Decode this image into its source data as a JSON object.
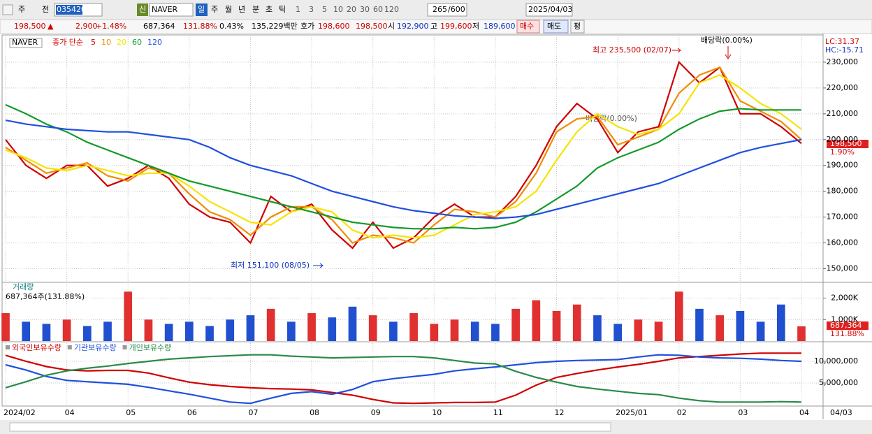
{
  "toolbar": {
    "kind": "주",
    "prev": "전",
    "code": "035420",
    "credit": "신",
    "name": "NAVER",
    "periods": [
      "일",
      "주",
      "월",
      "년",
      "분",
      "초",
      "틱"
    ],
    "intervals": [
      "1",
      "3",
      "5",
      "10",
      "20",
      "30",
      "60",
      "120"
    ],
    "count": "265",
    "count_max": "/600",
    "date": "2025/04/03"
  },
  "info": {
    "price": "198,500",
    "arrow": "▲",
    "change": "2,900",
    "change_rate": "+1.48%",
    "volume": "687,364",
    "volume_rate": "131.88%",
    "turnover": "0.43%",
    "amount": "135,229백만",
    "quote_label": "호가",
    "ask": "198,600",
    "bid": "198,500",
    "open_label": "시",
    "open": "192,900",
    "high_label": "고",
    "high": "199,600",
    "low_label": "저",
    "low": "189,600",
    "buy": "매수",
    "sell": "매도",
    "avg": "평"
  },
  "chart_data": [
    {
      "type": "line",
      "title": "NAVER",
      "ma_label": "종가 단순",
      "lc": "LC:31.37",
      "hc": "HC:-15.71",
      "last_label": "198,500",
      "last_rate": "1.90%",
      "annotations": [
        "최고 235,500 (02/07)",
        "배당락(0.00%)",
        "배당락(0.00%)",
        "최저 151,100 (08/05)"
      ],
      "ylim": [
        145000,
        240000
      ],
      "yticks": [
        {
          "value": 150000,
          "label": "150,000"
        },
        {
          "value": 160000,
          "label": "160,000"
        },
        {
          "value": 170000,
          "label": "170,000"
        },
        {
          "value": 180000,
          "label": "180,000"
        },
        {
          "value": 190000,
          "label": "190,000"
        },
        {
          "value": 200000,
          "label": "200,000"
        },
        {
          "value": 210000,
          "label": "210,000"
        },
        {
          "value": 220000,
          "label": "220,000"
        },
        {
          "value": 230000,
          "label": "230,000"
        }
      ],
      "grid": true,
      "series": [
        {
          "name": "5",
          "color": "#d00000",
          "values": [
            200000,
            190000,
            185000,
            190000,
            190000,
            182000,
            185000,
            190000,
            185000,
            175000,
            170000,
            168000,
            160000,
            178000,
            172000,
            175000,
            165000,
            158000,
            168000,
            158000,
            162000,
            170000,
            175000,
            170000,
            170000,
            178000,
            190000,
            205000,
            214000,
            208000,
            195000,
            203000,
            205000,
            230000,
            222000,
            228000,
            210000,
            210000,
            205000,
            198500
          ]
        },
        {
          "name": "10",
          "color": "#f08c00",
          "values": [
            197000,
            192000,
            187000,
            189000,
            191000,
            186000,
            184000,
            189000,
            187000,
            179000,
            172000,
            169000,
            163000,
            170000,
            174000,
            174000,
            169000,
            160000,
            163000,
            162000,
            160000,
            167000,
            173000,
            172000,
            170000,
            176000,
            187000,
            203000,
            208000,
            209000,
            198000,
            201000,
            204000,
            218000,
            225000,
            228000,
            215000,
            211000,
            207000,
            200000
          ]
        },
        {
          "name": "20",
          "color": "#f5e400",
          "values": [
            196000,
            193000,
            189000,
            188000,
            190000,
            188000,
            186000,
            187000,
            187000,
            182000,
            176000,
            172000,
            168000,
            167000,
            172000,
            174000,
            172000,
            165000,
            162000,
            163000,
            162000,
            163000,
            167000,
            171000,
            172000,
            174000,
            180000,
            192000,
            203000,
            210000,
            205000,
            202000,
            204000,
            210000,
            222000,
            225000,
            220000,
            214000,
            210000,
            204000
          ]
        },
        {
          "name": "60",
          "color": "#129a2a",
          "values": [
            213500,
            210000,
            206000,
            203000,
            199000,
            196000,
            193000,
            190000,
            187000,
            184000,
            182000,
            180000,
            178000,
            176000,
            174000,
            172000,
            170000,
            168000,
            167000,
            166000,
            165500,
            165500,
            166000,
            165500,
            166000,
            168000,
            172000,
            177000,
            182000,
            189000,
            193000,
            196000,
            199000,
            204000,
            208000,
            211000,
            212000,
            211500,
            211500,
            211500
          ]
        },
        {
          "name": "120",
          "color": "#2050e0",
          "values": [
            207500,
            206000,
            205000,
            204000,
            203500,
            203000,
            203000,
            202000,
            201000,
            200000,
            197000,
            193000,
            190000,
            188000,
            186000,
            183000,
            180000,
            178000,
            176000,
            174000,
            172500,
            171500,
            170500,
            170000,
            169500,
            170000,
            171000,
            173000,
            175000,
            177000,
            179000,
            181000,
            183000,
            186000,
            189000,
            192000,
            195000,
            197000,
            198500,
            200000
          ]
        }
      ]
    },
    {
      "type": "bar",
      "title": "거래량",
      "readout": "687,364주(131.88%)",
      "last_label": "687,364",
      "last_rate": "131.88%",
      "ylim": [
        0,
        2700000
      ],
      "yticks": [
        {
          "value": 1000000,
          "label": "1,000K"
        },
        {
          "value": 2000000,
          "label": "2,000K"
        }
      ],
      "grid": true,
      "values": [
        1300000,
        900000,
        800000,
        1000000,
        700000,
        900000,
        2300000,
        1000000,
        800000,
        900000,
        700000,
        1000000,
        1200000,
        1500000,
        900000,
        1300000,
        1100000,
        1600000,
        1200000,
        900000,
        1300000,
        800000,
        1000000,
        900000,
        800000,
        1500000,
        1900000,
        1400000,
        1700000,
        1200000,
        800000,
        1000000,
        900000,
        2300000,
        1500000,
        1200000,
        1400000,
        900000,
        1700000,
        687364
      ],
      "colors": [
        "#e03030",
        "#2050d0",
        "#2050d0",
        "#e03030",
        "#2050d0",
        "#2050d0",
        "#e03030",
        "#e03030",
        "#2050d0",
        "#2050d0",
        "#2050d0",
        "#2050d0",
        "#2050d0",
        "#e03030",
        "#2050d0",
        "#e03030",
        "#2050d0",
        "#2050d0",
        "#e03030",
        "#2050d0",
        "#e03030",
        "#e03030",
        "#e03030",
        "#2050d0",
        "#2050d0",
        "#e03030",
        "#e03030",
        "#e03030",
        "#e03030",
        "#2050d0",
        "#2050d0",
        "#e03030",
        "#e03030",
        "#e03030",
        "#2050d0",
        "#e03030",
        "#2050d0",
        "#2050d0",
        "#2050d0",
        "#e03030"
      ]
    },
    {
      "type": "line",
      "x_end_label": "04/03",
      "categories": [
        "2024/02",
        null,
        null,
        "04",
        null,
        null,
        "05",
        null,
        null,
        "06",
        null,
        null,
        "07",
        null,
        null,
        "08",
        null,
        null,
        "09",
        null,
        null,
        "10",
        null,
        null,
        "11",
        null,
        null,
        "12",
        null,
        null,
        "2025/01",
        null,
        null,
        "02",
        null,
        null,
        "03",
        null,
        null,
        "04"
      ],
      "ylim": [
        0,
        14200000
      ],
      "yticks": [
        {
          "value": 5000000,
          "label": "5,000,000"
        },
        {
          "value": 10000000,
          "label": "10,000,000"
        }
      ],
      "grid": true,
      "series": [
        {
          "name": "외국인보유수량",
          "color": "#d00000",
          "values": [
            11400000,
            10000000,
            8800000,
            8000000,
            7800000,
            7900000,
            7900000,
            7300000,
            6200000,
            5200000,
            4600000,
            4200000,
            3900000,
            3700000,
            3600000,
            3400000,
            2800000,
            2200000,
            1200000,
            400000,
            300000,
            400000,
            500000,
            500000,
            600000,
            2200000,
            4500000,
            6300000,
            7200000,
            8000000,
            8700000,
            9300000,
            10000000,
            10800000,
            11100000,
            11400000,
            11700000,
            11900000,
            11900000,
            11900000
          ]
        },
        {
          "name": "기관보유수량",
          "color": "#2050e0",
          "values": [
            9200000,
            8000000,
            6500000,
            5600000,
            5300000,
            5000000,
            4700000,
            4000000,
            3200000,
            2400000,
            1500000,
            600000,
            300000,
            1500000,
            2600000,
            3000000,
            2400000,
            3500000,
            5300000,
            6000000,
            6500000,
            7000000,
            7800000,
            8300000,
            8700000,
            9200000,
            9700000,
            10000000,
            10200000,
            10300000,
            10400000,
            11000000,
            11500000,
            11400000,
            11000000,
            10800000,
            10700000,
            10500000,
            10200000,
            10000000
          ]
        },
        {
          "name": "개인보유수량",
          "color": "#2a8a4a",
          "values": [
            3900000,
            5300000,
            6800000,
            7800000,
            8400000,
            8900000,
            9500000,
            10000000,
            10500000,
            10800000,
            11100000,
            11300000,
            11500000,
            11500000,
            11200000,
            11000000,
            10800000,
            10900000,
            11000000,
            11100000,
            11100000,
            10800000,
            10200000,
            9600000,
            9400000,
            7700000,
            6300000,
            5200000,
            4200000,
            3600000,
            3100000,
            2600000,
            2300000,
            1500000,
            900000,
            600000,
            600000,
            600000,
            700000,
            600000
          ]
        }
      ]
    }
  ]
}
